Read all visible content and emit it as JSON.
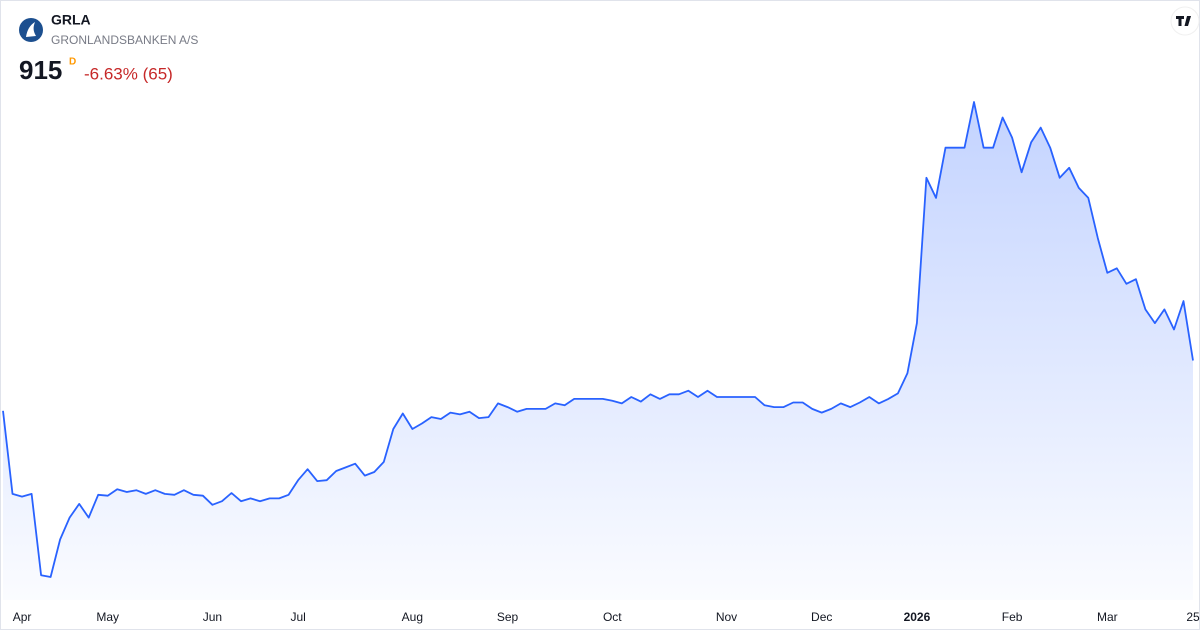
{
  "chart_data": {
    "type": "line",
    "title": "GRLA",
    "subtitle": "GRONLANDSBANKEN A/S",
    "last_price": 915,
    "interval": "D",
    "change": "-6.63% (65)",
    "color": "#2962ff",
    "categories": [
      null,
      null,
      "Apr",
      null,
      null,
      null,
      null,
      null,
      null,
      null,
      null,
      "May",
      null,
      null,
      null,
      null,
      null,
      null,
      null,
      null,
      null,
      null,
      "Jun",
      null,
      null,
      null,
      null,
      null,
      null,
      null,
      null,
      "Jul",
      null,
      null,
      null,
      null,
      null,
      null,
      null,
      null,
      null,
      null,
      null,
      "Aug",
      null,
      null,
      null,
      null,
      null,
      null,
      null,
      null,
      null,
      "Sep",
      null,
      null,
      null,
      null,
      null,
      null,
      null,
      null,
      null,
      null,
      "Oct",
      null,
      null,
      null,
      null,
      null,
      null,
      null,
      null,
      null,
      null,
      null,
      "Nov",
      null,
      null,
      null,
      null,
      null,
      null,
      null,
      null,
      null,
      "Dec",
      null,
      null,
      null,
      null,
      null,
      null,
      null,
      null,
      null,
      "2026",
      null,
      null,
      null,
      null,
      null,
      null,
      null,
      null,
      null,
      "Feb",
      null,
      null,
      null,
      null,
      null,
      null,
      null,
      null,
      null,
      "Mar",
      null,
      null,
      null,
      null,
      null,
      null,
      null,
      null,
      "25"
    ],
    "values": [
      860,
      769,
      766,
      769,
      680,
      678,
      719,
      743,
      758,
      743,
      768,
      767,
      774,
      771,
      773,
      769,
      773,
      769,
      768,
      773,
      768,
      767,
      757,
      761,
      770,
      761,
      764,
      761,
      764,
      764,
      768,
      784,
      796,
      783,
      784,
      794,
      798,
      802,
      789,
      793,
      804,
      840,
      857,
      840,
      846,
      853,
      851,
      858,
      856,
      859,
      852,
      853,
      868,
      864,
      859,
      862,
      862,
      862,
      868,
      866,
      873,
      873,
      873,
      873,
      871,
      868,
      875,
      870,
      878,
      873,
      878,
      878,
      882,
      875,
      882,
      875,
      875,
      875,
      875,
      875,
      866,
      864,
      864,
      869,
      869,
      862,
      858,
      862,
      868,
      864,
      869,
      875,
      868,
      873,
      879,
      901,
      956,
      1115,
      1093,
      1148,
      1148,
      1148,
      1198,
      1148,
      1148,
      1181,
      1159,
      1121,
      1154,
      1170,
      1148,
      1115,
      1126,
      1104,
      1093,
      1049,
      1011,
      1016,
      999,
      1004,
      971,
      956,
      971,
      949,
      980,
      915
    ]
  }
}
